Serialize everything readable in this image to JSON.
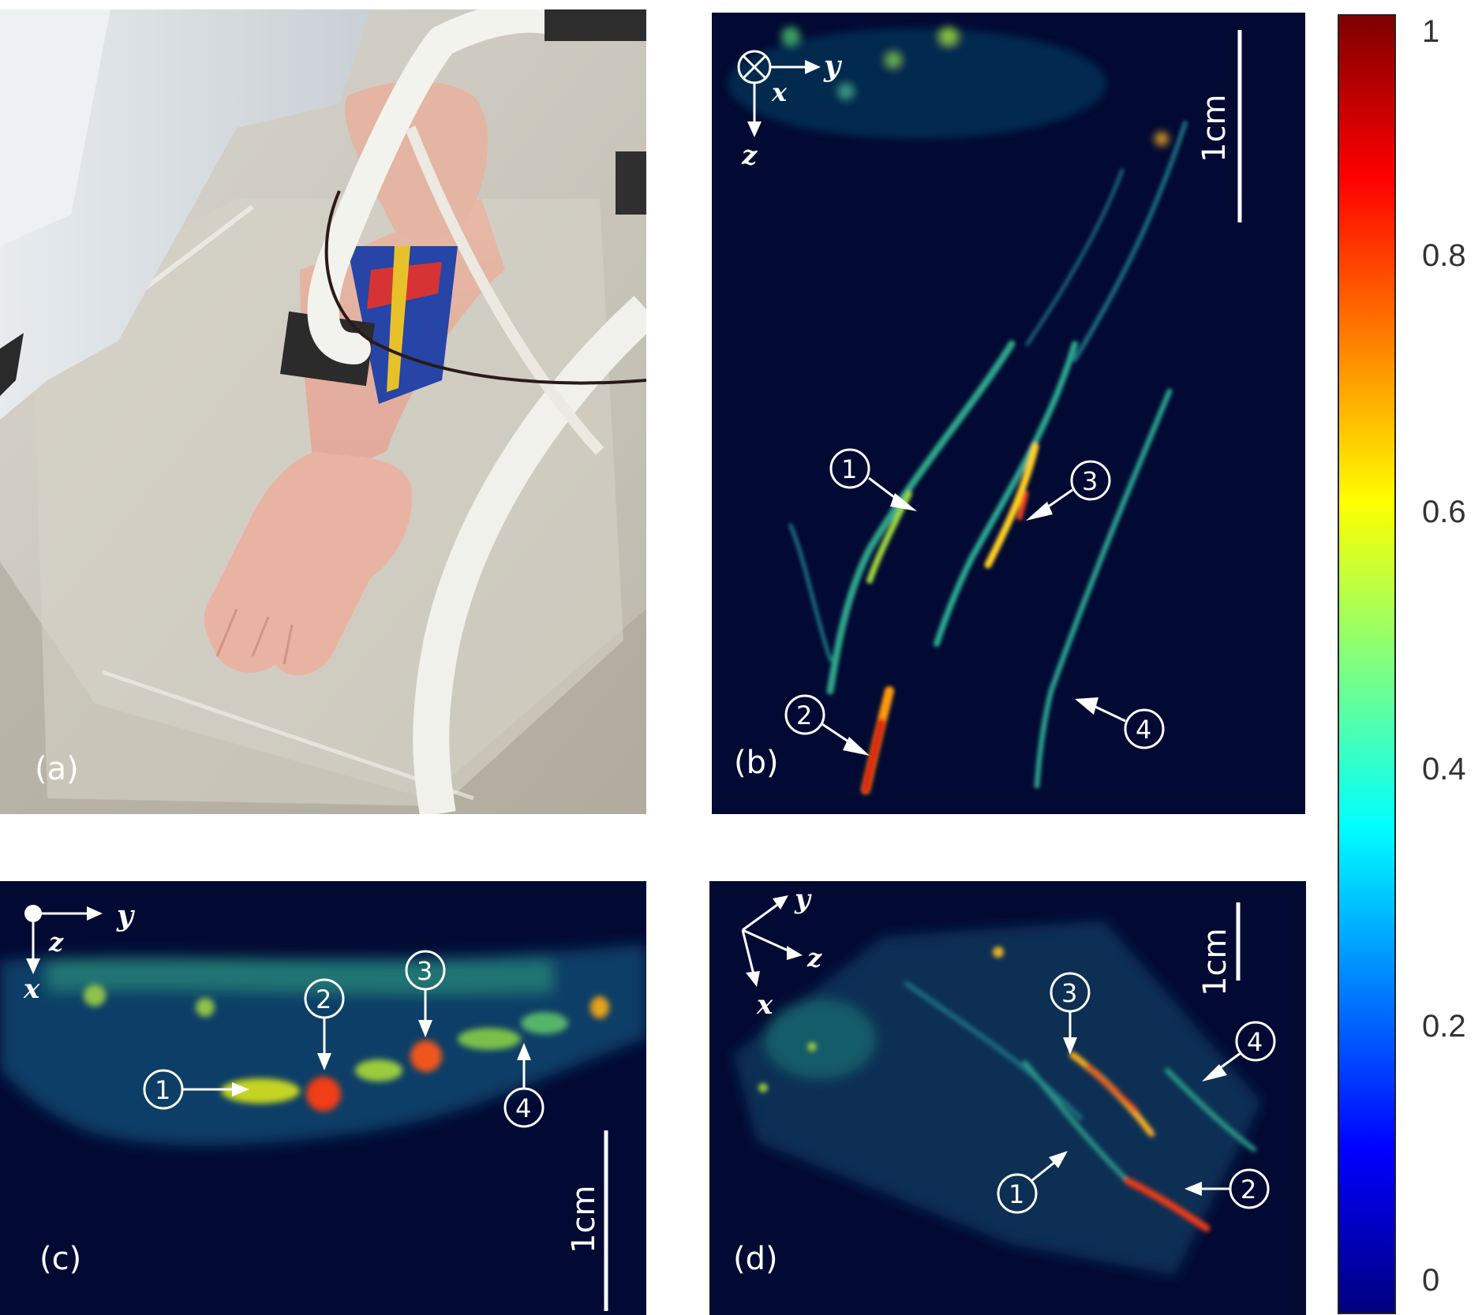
{
  "panels": {
    "a": {
      "label": "(a)"
    },
    "b": {
      "label": "(b)",
      "axes": {
        "cross": "x",
        "right": "y",
        "down": "z"
      },
      "scale_bar": "1cm",
      "markers": [
        "1",
        "2",
        "3",
        "4"
      ]
    },
    "c": {
      "label": "(c)",
      "axes": {
        "dot": "z",
        "right": "y",
        "down": "x"
      },
      "scale_bar": "1cm",
      "markers": [
        "1",
        "2",
        "3",
        "4"
      ]
    },
    "d": {
      "label": "(d)",
      "axes": {
        "up": "y",
        "mid": "z",
        "down": "x"
      },
      "scale_bar": "1cm",
      "markers": [
        "1",
        "2",
        "3",
        "4"
      ]
    }
  },
  "colorbar": {
    "ticks": [
      "1",
      "0.8",
      "0.6",
      "0.4",
      "0.2",
      "0"
    ],
    "colormap": "jet",
    "colors": [
      "#00007f",
      "#0000ff",
      "#007fff",
      "#00ffff",
      "#7fff7f",
      "#ffff00",
      "#ff7f00",
      "#ff0000",
      "#7f0000"
    ]
  }
}
